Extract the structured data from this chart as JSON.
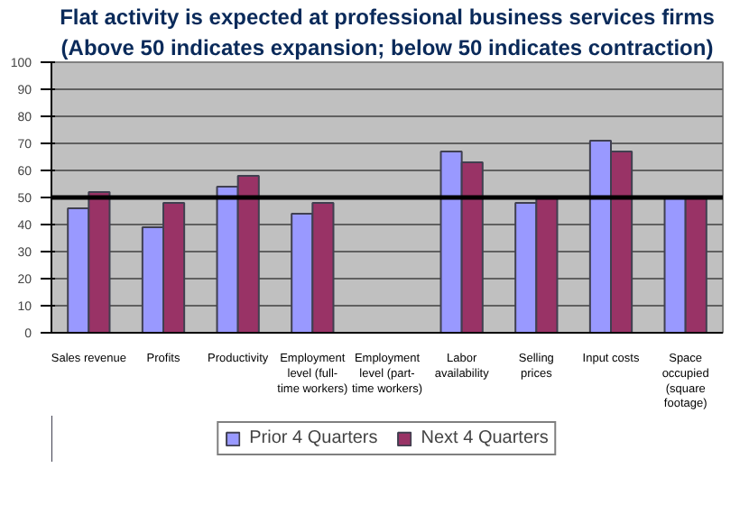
{
  "chart_data": {
    "type": "bar",
    "title": "Flat activity is expected at professional business services firms",
    "subtitle": "(Above 50 indicates expansion; below 50 indicates contraction)",
    "categories": [
      "Sales revenue",
      "Profits",
      "Productivity",
      "Employment level (full-time workers)",
      "Employment level (part-time workers)",
      "Labor availability",
      "Selling prices",
      "Input costs",
      "Space occupied (square footage)"
    ],
    "series": [
      {
        "name": "Prior 4 Quarters",
        "color": "#9999ff",
        "values": [
          46,
          39,
          54,
          44,
          null,
          67,
          48,
          71,
          50
        ]
      },
      {
        "name": "Next 4 Quarters",
        "color": "#993366",
        "values": [
          52,
          48,
          58,
          48,
          null,
          63,
          50,
          67,
          50
        ]
      }
    ],
    "ylim": [
      0,
      100
    ],
    "yticks": [
      0,
      10,
      20,
      30,
      40,
      50,
      60,
      70,
      80,
      90,
      100
    ],
    "grid": "y",
    "legend": "bottom",
    "ref_lines": [
      {
        "axis": "y",
        "value": 50,
        "color": "#000000"
      }
    ]
  }
}
